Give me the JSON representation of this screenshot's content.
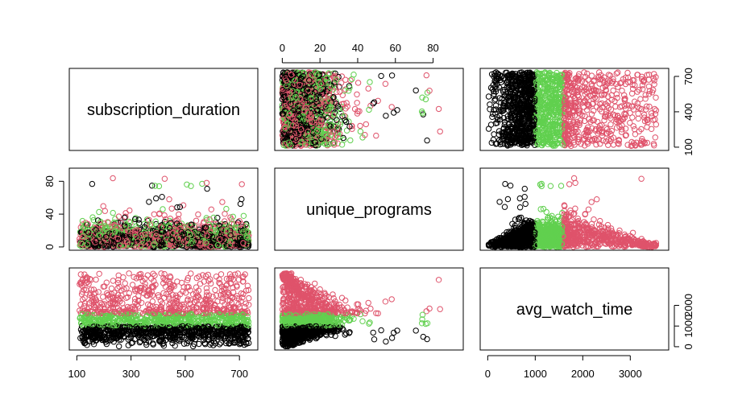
{
  "chart_data": {
    "type": "scatter-matrix",
    "variables": [
      "subscription_duration",
      "unique_programs",
      "avg_watch_time"
    ],
    "axis_ticks": {
      "subscription_duration": [
        100,
        300,
        500,
        700
      ],
      "subscription_duration_right": [
        100,
        400,
        700
      ],
      "unique_programs": [
        0,
        20,
        40,
        60,
        80
      ],
      "unique_programs_left": [
        0,
        40,
        80
      ],
      "avg_watch_time": [
        0,
        1000,
        2000,
        3000
      ],
      "avg_watch_time_right": [
        0,
        1000,
        2000
      ]
    },
    "ranges": {
      "subscription_duration": [
        100,
        740
      ],
      "unique_programs": [
        0,
        92
      ],
      "avg_watch_time": [
        0,
        3650
      ]
    },
    "groups": [
      {
        "color": "#000000",
        "avg_watch_time_range": [
          0,
          1000
        ]
      },
      {
        "color": "#61D04F",
        "avg_watch_time_range": [
          1000,
          1600
        ]
      },
      {
        "color": "#DF536B",
        "avg_watch_time_range": [
          1600,
          3600
        ]
      }
    ],
    "grid": false
  }
}
